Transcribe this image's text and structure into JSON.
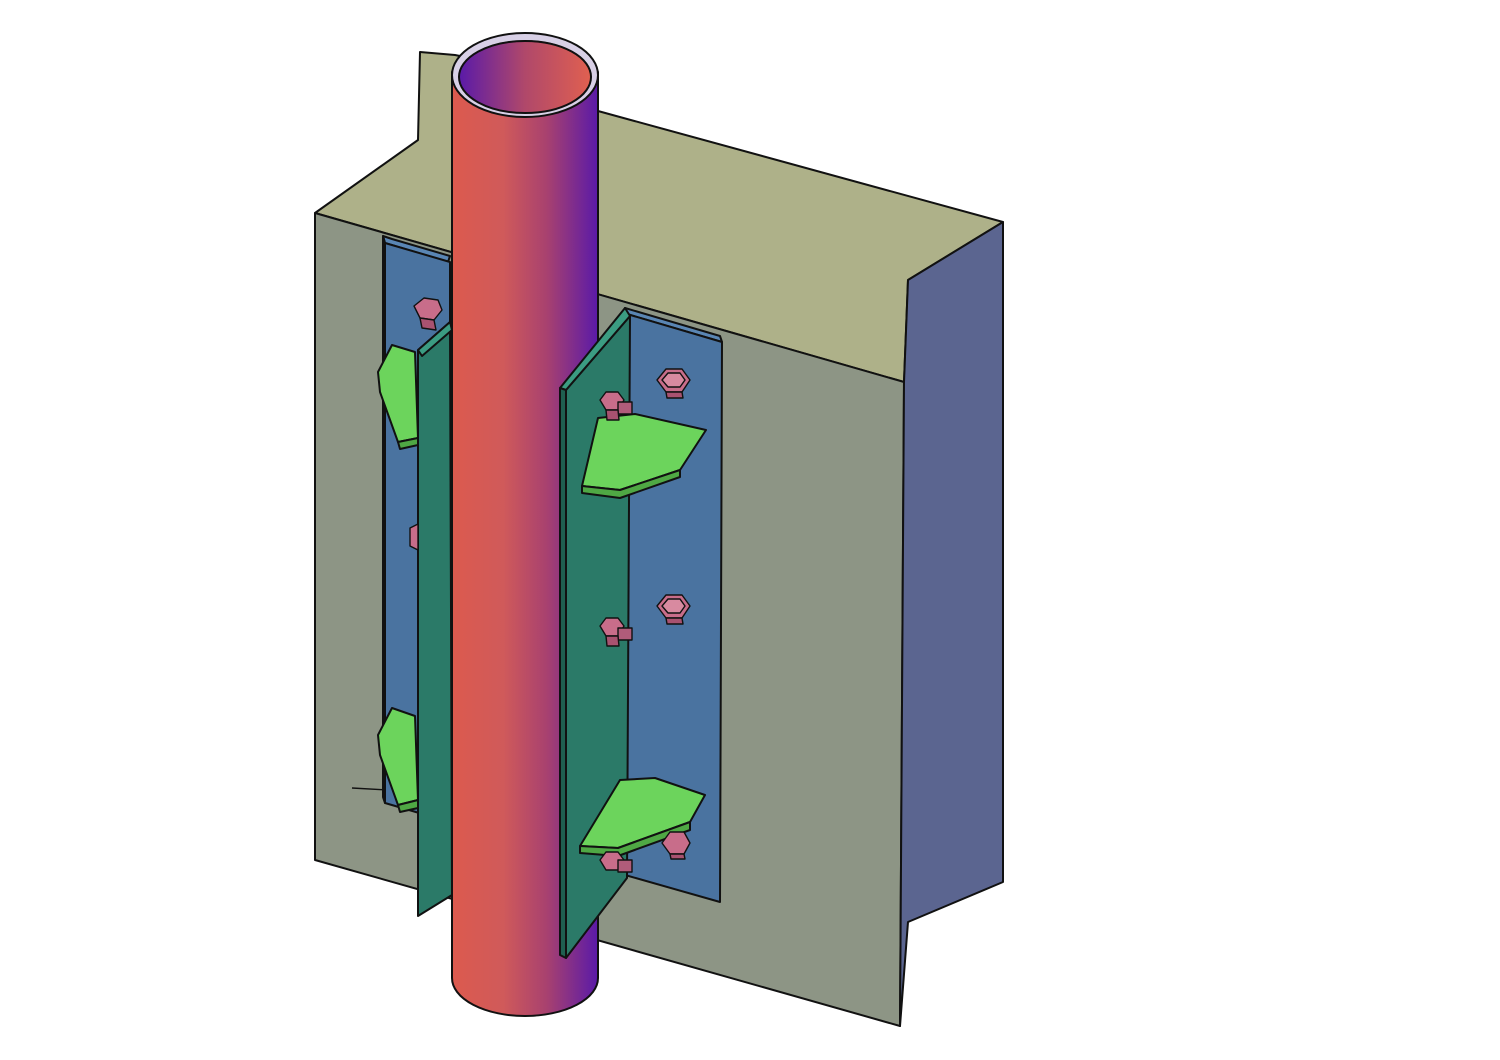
{
  "drawing": {
    "view": "3D isometric",
    "components": [
      {
        "name": "concrete-block",
        "top_color": "#aeb189",
        "front_color": "#8d9585",
        "side_color": "#5b6590"
      },
      {
        "name": "back-plate",
        "color": "#4a73a0"
      },
      {
        "name": "front-plate",
        "color": "#4a73a0"
      },
      {
        "name": "gusset-plate",
        "color": "#2b7a68"
      },
      {
        "name": "stiffener",
        "color": "#6cd45c"
      },
      {
        "name": "bolt",
        "color": "#c86d8a"
      },
      {
        "name": "pipe",
        "gradient": [
          "#dc5a4e",
          "#c75666",
          "#8b3a80",
          "#5a1aa8"
        ]
      }
    ]
  }
}
